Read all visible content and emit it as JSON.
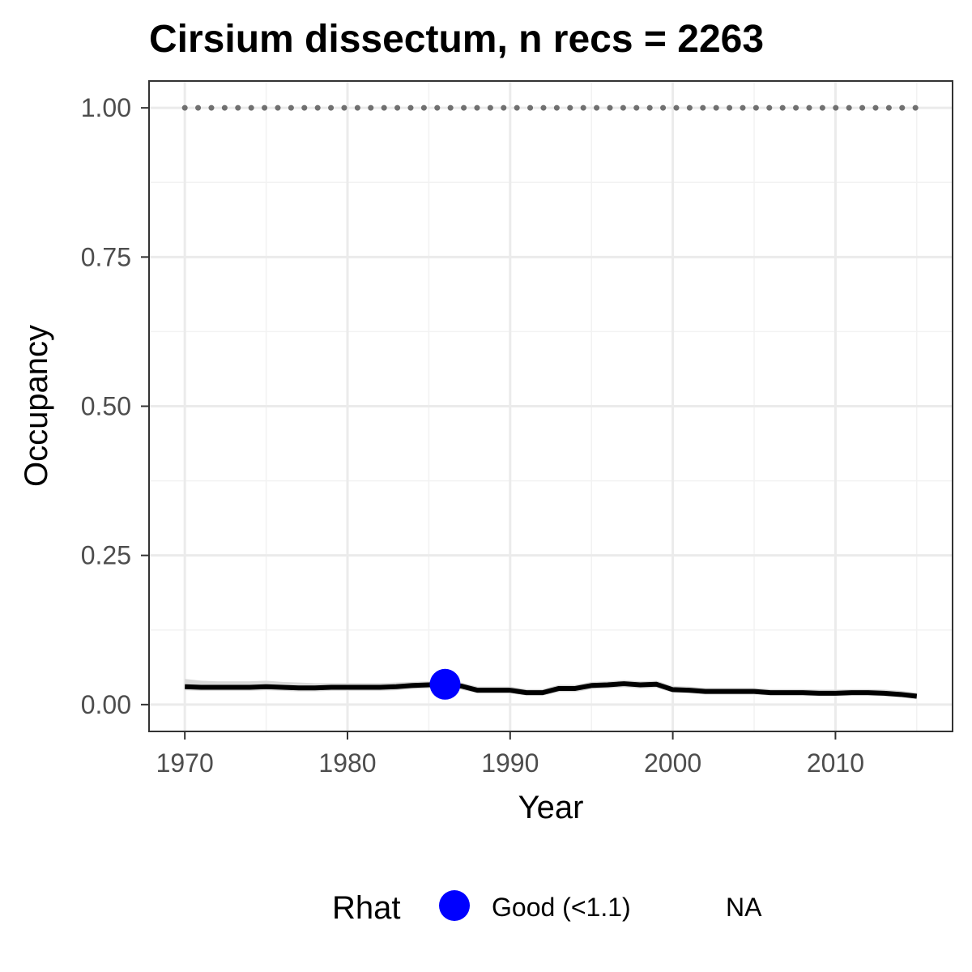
{
  "chart_data": {
    "type": "line",
    "title": "Cirsium dissectum, n recs = 2263",
    "xlabel": "Year",
    "ylabel": "Occupancy",
    "xlim": [
      1967.8,
      2017.2
    ],
    "ylim": [
      -0.045,
      1.045
    ],
    "x_ticks": [
      1970,
      1980,
      1990,
      2000,
      2010
    ],
    "x_tick_labels": [
      "1970",
      "1980",
      "1990",
      "2000",
      "2010"
    ],
    "y_ticks": [
      0,
      0.25,
      0.5,
      0.75,
      1
    ],
    "y_tick_labels": [
      "0.00",
      "0.25",
      "0.50",
      "0.75",
      "1.00"
    ],
    "grid": true,
    "series": [
      {
        "x": [
          1970,
          1971,
          1972,
          1973,
          1974,
          1975,
          1976,
          1977,
          1978,
          1979,
          1980,
          1981,
          1982,
          1983,
          1984,
          1985,
          1986,
          1987,
          1988,
          1989,
          1990,
          1991,
          1992,
          1993,
          1994,
          1995,
          1996,
          1997,
          1998,
          1999,
          2000,
          2001,
          2002,
          2003,
          2004,
          2005,
          2006,
          2007,
          2008,
          2009,
          2010,
          2011,
          2012,
          2013,
          2014,
          2015
        ],
        "values": [
          0.03,
          0.029,
          0.029,
          0.029,
          0.029,
          0.03,
          0.029,
          0.028,
          0.028,
          0.029,
          0.029,
          0.029,
          0.029,
          0.03,
          0.032,
          0.033,
          0.034,
          0.031,
          0.024,
          0.024,
          0.024,
          0.02,
          0.02,
          0.027,
          0.027,
          0.032,
          0.033,
          0.035,
          0.033,
          0.034,
          0.025,
          0.024,
          0.022,
          0.022,
          0.022,
          0.022,
          0.02,
          0.02,
          0.02,
          0.019,
          0.019,
          0.02,
          0.02,
          0.019,
          0.017,
          0.014
        ],
        "lower": [
          0.024,
          0.023,
          0.023,
          0.023,
          0.023,
          0.024,
          0.023,
          0.022,
          0.022,
          0.023,
          0.023,
          0.023,
          0.023,
          0.024,
          0.026,
          0.027,
          0.028,
          0.025,
          0.019,
          0.019,
          0.019,
          0.015,
          0.015,
          0.021,
          0.021,
          0.026,
          0.027,
          0.029,
          0.027,
          0.028,
          0.02,
          0.019,
          0.017,
          0.017,
          0.017,
          0.017,
          0.015,
          0.015,
          0.015,
          0.014,
          0.014,
          0.015,
          0.015,
          0.014,
          0.012,
          0.009
        ],
        "upper": [
          0.043,
          0.04,
          0.039,
          0.039,
          0.039,
          0.04,
          0.038,
          0.037,
          0.036,
          0.036,
          0.036,
          0.036,
          0.036,
          0.037,
          0.038,
          0.039,
          0.04,
          0.037,
          0.03,
          0.03,
          0.03,
          0.026,
          0.026,
          0.033,
          0.033,
          0.038,
          0.039,
          0.041,
          0.039,
          0.04,
          0.031,
          0.03,
          0.028,
          0.028,
          0.028,
          0.028,
          0.026,
          0.026,
          0.026,
          0.025,
          0.025,
          0.026,
          0.026,
          0.025,
          0.023,
          0.02
        ],
        "color": "#000000",
        "band_color": "#d9d9d9"
      },
      {
        "style": "dotted",
        "x": [
          1970,
          2015
        ],
        "values": [
          1,
          1
        ],
        "color": "#707070"
      }
    ],
    "points": [
      {
        "x": 1986,
        "y": 0.034,
        "color": "#0000ff",
        "category": "Good (<1.1)"
      }
    ],
    "legend": {
      "title": "Rhat",
      "position": "bottom",
      "items": [
        {
          "label": "Good (<1.1)",
          "color": "#0000ff"
        },
        {
          "label": "NA",
          "color": ""
        }
      ]
    }
  }
}
